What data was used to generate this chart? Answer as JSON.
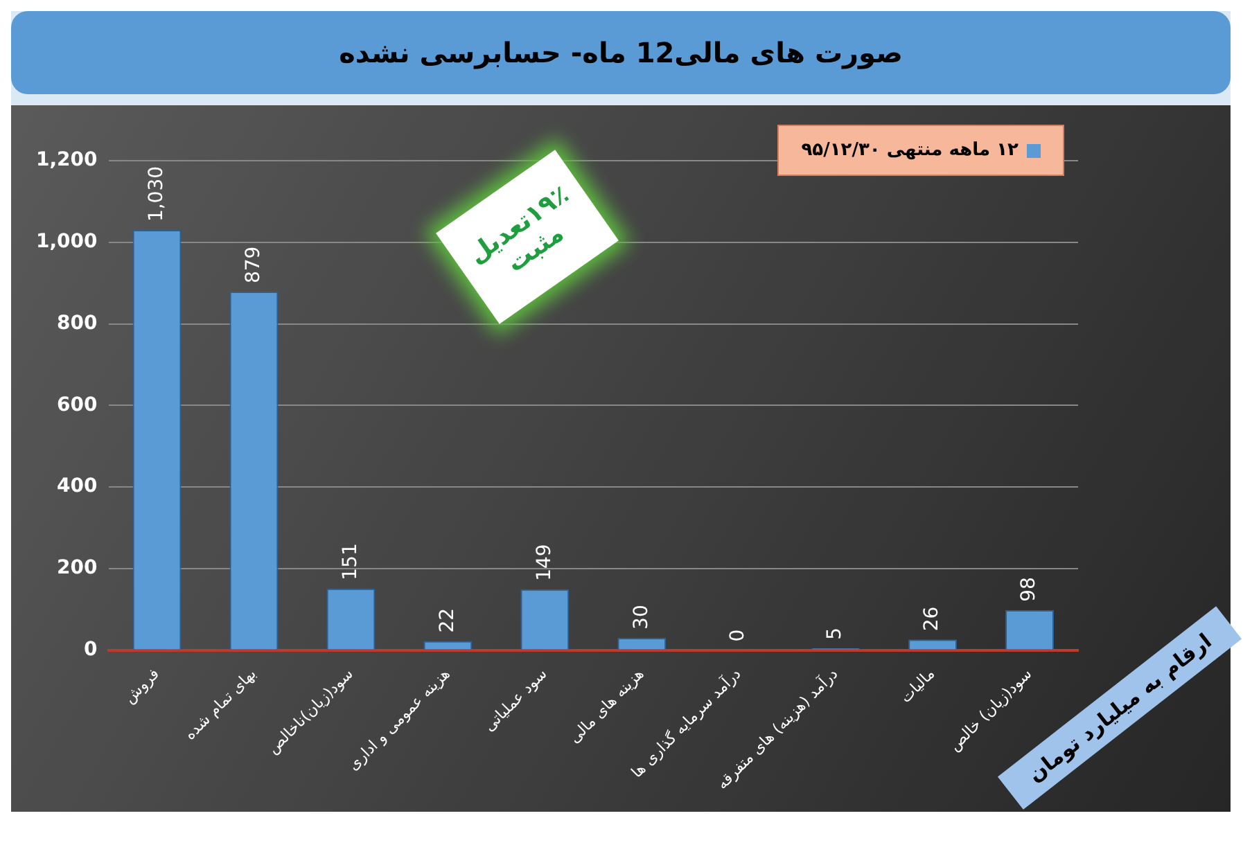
{
  "chart_data": {
    "type": "bar",
    "title": "صورت های مالی12 ماه- حسابرسی نشده",
    "categories": [
      "فروش",
      "بهای تمام شده",
      "سود(زیان)ناخالص",
      "هزینه عمومی و اداری",
      "سود عملیاتی",
      "هزینه های مالی",
      "درآمد سرمایه گذاری ها",
      "درآمد (هزینه) های متفرقه",
      "مالیات",
      "سود(زیان) خالص"
    ],
    "series": [
      {
        "name": "۱۲ ماهه منتهی ۹۵/۱۲/۳۰",
        "color": "#5b9bd5",
        "values": [
          1030,
          879,
          151,
          22,
          149,
          30,
          0,
          5,
          26,
          98
        ],
        "value_labels": [
          "1,030",
          "879",
          "151",
          "22",
          "149",
          "30",
          "0",
          "5",
          "26",
          "98"
        ]
      }
    ],
    "ylim": [
      0,
      1200
    ],
    "yticks": [
      0,
      200,
      400,
      600,
      800,
      {
        "value": 1000,
        "label": "1,000"
      },
      {
        "value": 1200,
        "label": "1,200"
      }
    ],
    "grid": "y",
    "legend": "top right",
    "annotations": [
      "۱۹٪تعدیل مثبت",
      "ارقام به میلیارد تومان"
    ]
  }
}
